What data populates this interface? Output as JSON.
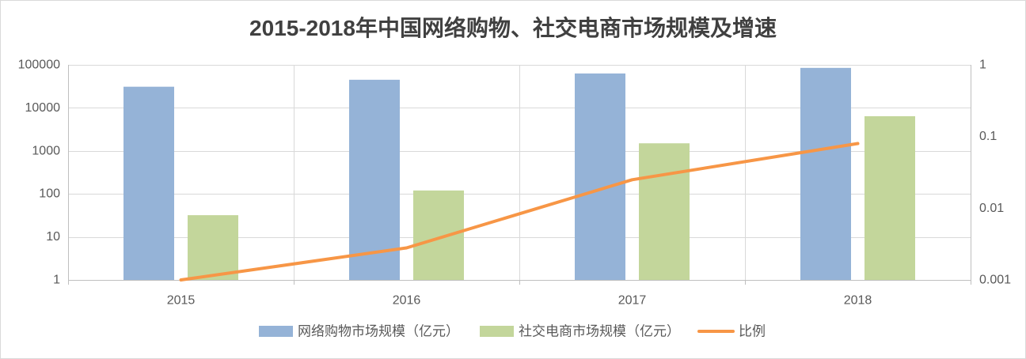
{
  "chart_data": {
    "type": "bar",
    "title": "2015-2018年中国网络购物、社交电商市场规模及增速",
    "categories": [
      "2015",
      "2016",
      "2017",
      "2018"
    ],
    "series": [
      {
        "name": "网络购物市场规模（亿元）",
        "type": "bar",
        "axis": "left",
        "color": "#95B3D7",
        "values": [
          31000,
          45000,
          63000,
          85000
        ]
      },
      {
        "name": "社交电商市场规模（亿元）",
        "type": "bar",
        "axis": "left",
        "color": "#C3D69B",
        "values": [
          32,
          120,
          1500,
          6400
        ]
      },
      {
        "name": "比例",
        "type": "line",
        "axis": "right",
        "color": "#F79646",
        "values": [
          0.001,
          0.0028,
          0.025,
          0.08
        ]
      }
    ],
    "y_scale": "log",
    "ylim": [
      1,
      100000
    ],
    "y_ticks": [
      1,
      10,
      100,
      1000,
      10000,
      100000
    ],
    "y2_scale": "log",
    "y2lim": [
      0.001,
      1
    ],
    "y2_ticks": [
      0.001,
      0.01,
      0.1,
      1
    ],
    "grid": true,
    "legend": "bottom"
  }
}
